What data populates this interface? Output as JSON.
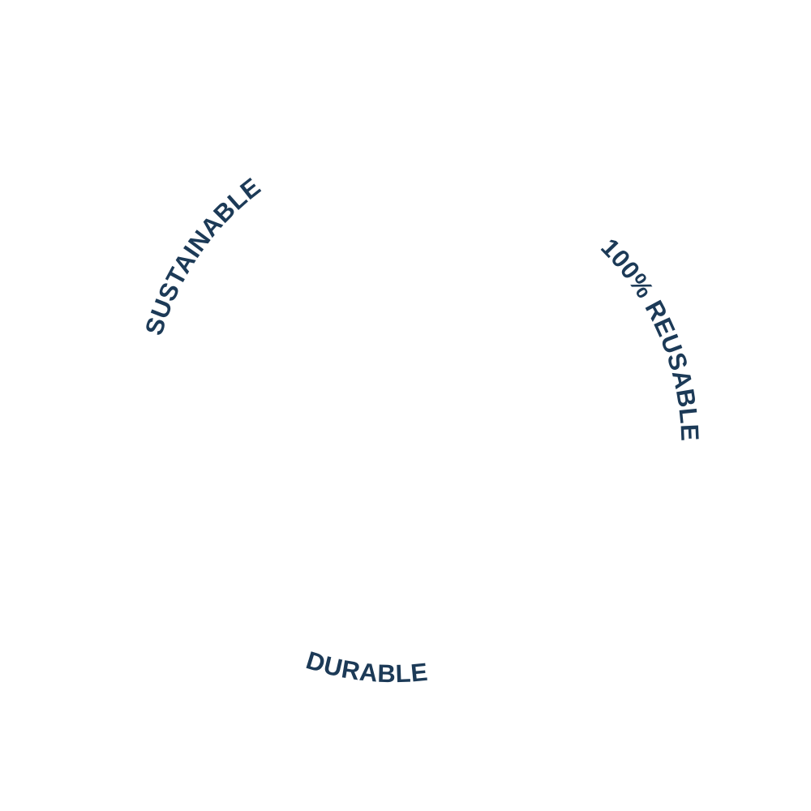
{
  "badge": {
    "text_color": "#1c3a57",
    "background_color": "#ffffff",
    "labels": {
      "sustainable": "SUSTAINABLE",
      "reusable": "100% REUSABLE",
      "durable": "DURABLE"
    }
  }
}
